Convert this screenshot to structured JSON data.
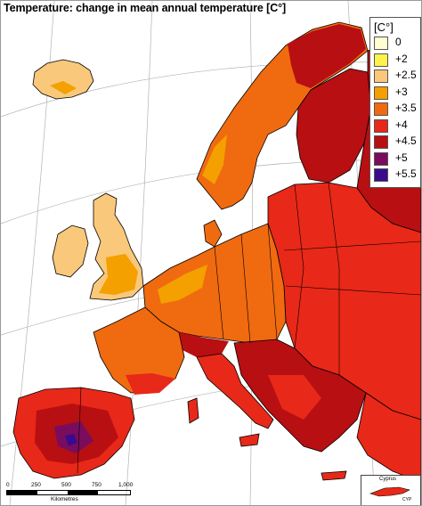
{
  "title": "Temperature: change in mean annual temperature [C°]",
  "legend": {
    "title": "[C°]",
    "items": [
      {
        "label": "0",
        "color": "#ffffd2"
      },
      {
        "label": "+2",
        "color": "#fff24a"
      },
      {
        "label": "+2.5",
        "color": "#f9c87a"
      },
      {
        "label": "+3",
        "color": "#f3a000"
      },
      {
        "label": "+3.5",
        "color": "#f06a10"
      },
      {
        "label": "+4",
        "color": "#e82818"
      },
      {
        "label": "+4.5",
        "color": "#b80f12"
      },
      {
        "label": "+5",
        "color": "#7a0c5e"
      },
      {
        "label": "+5.5",
        "color": "#3a0a8c"
      }
    ]
  },
  "scale_bar": {
    "ticks": [
      "0",
      "250",
      "500",
      "750",
      "1,000"
    ],
    "unit": "Kilometres"
  },
  "inset": {
    "label": "Cyprus",
    "code": "CYP"
  },
  "colors": {
    "sea": "#ffffff",
    "border": "#000000",
    "graticule": "#b0b0b0"
  }
}
